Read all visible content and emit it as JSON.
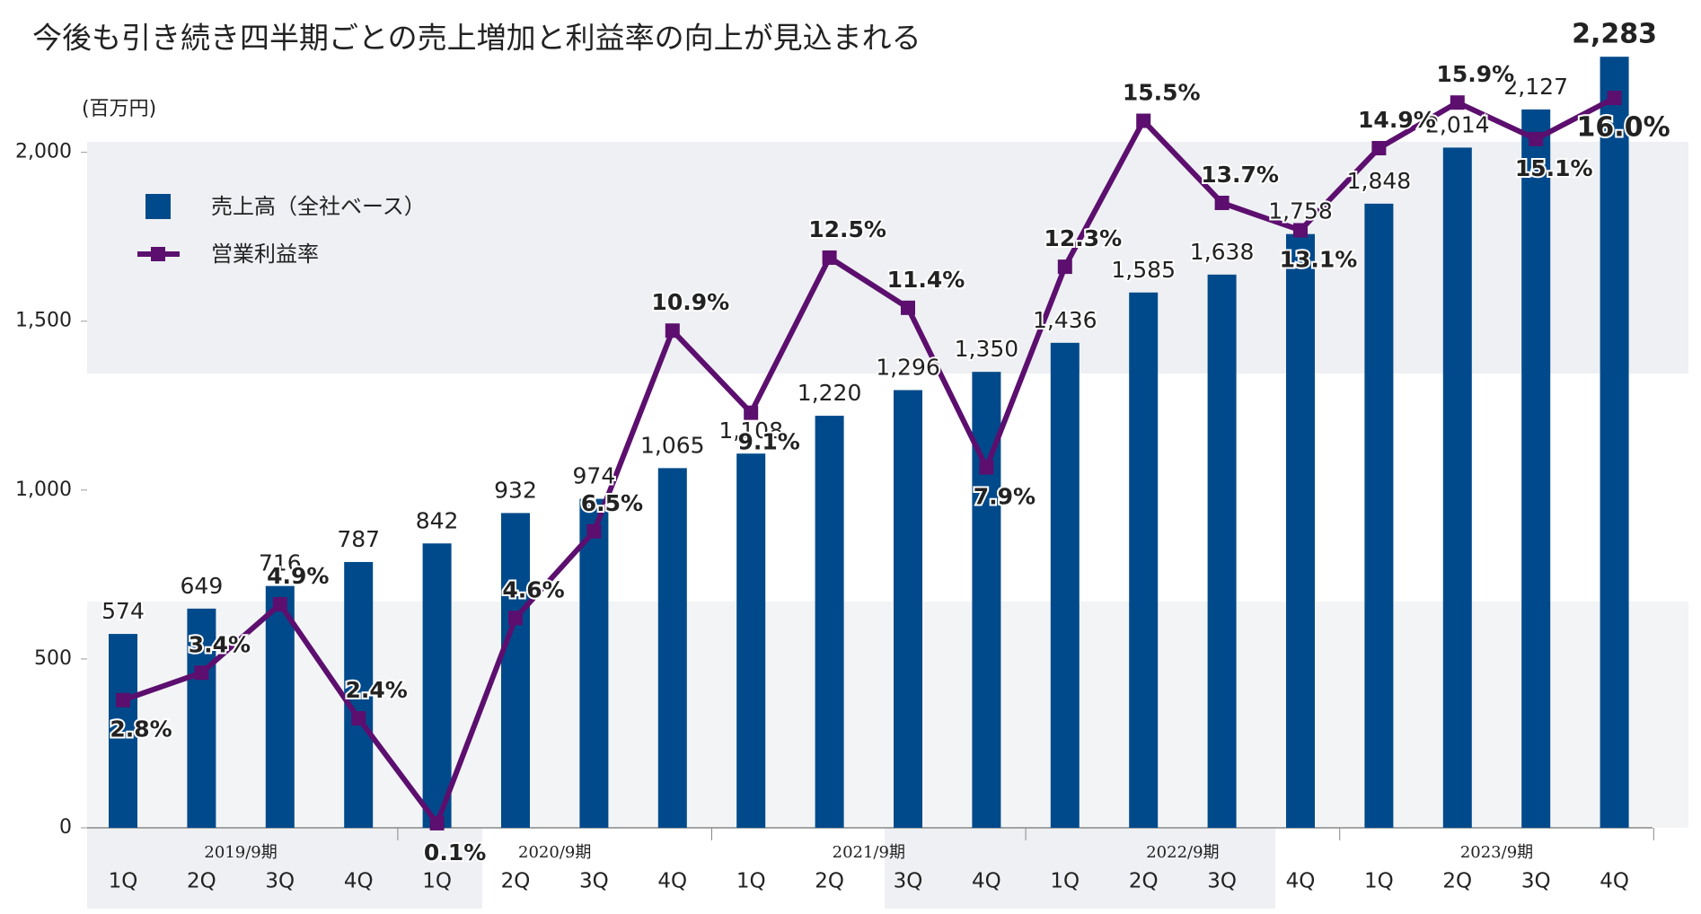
{
  "chart_data": {
    "type": "bar_line",
    "title": "今後も引き続き四半期ごとの売上増加と利益率の向上が見込まれる",
    "y_label": "(百万円)",
    "groups": [
      {
        "name": "2019/9期",
        "categories": [
          "1Q",
          "2Q",
          "3Q",
          "4Q"
        ]
      },
      {
        "name": "2020/9期",
        "categories": [
          "1Q",
          "2Q",
          "3Q",
          "4Q"
        ]
      },
      {
        "name": "2021/9期",
        "categories": [
          "1Q",
          "2Q",
          "3Q",
          "4Q"
        ]
      },
      {
        "name": "2022/9期",
        "categories": [
          "1Q",
          "2Q",
          "3Q",
          "4Q"
        ]
      },
      {
        "name": "2023/9期",
        "categories": [
          "1Q",
          "2Q",
          "3Q",
          "4Q"
        ]
      }
    ],
    "series": [
      {
        "name": "売上高（全社ベース）",
        "type": "bar",
        "color": "#004a8b",
        "values": [
          574,
          649,
          716,
          787,
          842,
          932,
          974,
          1065,
          1108,
          1220,
          1296,
          1350,
          1436,
          1585,
          1638,
          1758,
          1848,
          2014,
          2127,
          2283
        ],
        "value_labels": [
          "574",
          "649",
          "716",
          "787",
          "842",
          "932",
          "974",
          "1,065",
          "1,108",
          "1,220",
          "1,296",
          "1,350",
          "1,436",
          "1,585",
          "1,638",
          "1,758",
          "1,848",
          "2,014",
          "2,127",
          "2,283"
        ]
      },
      {
        "name": "営業利益率",
        "type": "line",
        "axis": "y2",
        "color": "#5c0f6e",
        "values": [
          2.8,
          3.4,
          4.9,
          2.4,
          0.1,
          4.6,
          6.5,
          10.9,
          9.1,
          12.5,
          11.4,
          7.9,
          12.3,
          15.5,
          13.7,
          13.1,
          14.9,
          15.9,
          15.1,
          16.0
        ],
        "value_labels": [
          "2.8%",
          "3.4%",
          "4.9%",
          "2.4%",
          "0.1%",
          "4.6%",
          "6.5%",
          "10.9%",
          "9.1%",
          "12.5%",
          "11.4%",
          "7.9%",
          "12.3%",
          "15.5%",
          "13.7%",
          "13.1%",
          "14.9%",
          "15.9%",
          "15.1%",
          "16.0%"
        ]
      }
    ],
    "ylim": [
      0,
      2350
    ],
    "yticks": [
      0,
      500,
      {
        "value": 1000,
        "label": "1,000"
      },
      {
        "value": 1500,
        "label": "1,500"
      },
      {
        "value": 2000,
        "label": "2,000"
      }
    ],
    "y2lim": [
      0,
      17.4
    ]
  }
}
